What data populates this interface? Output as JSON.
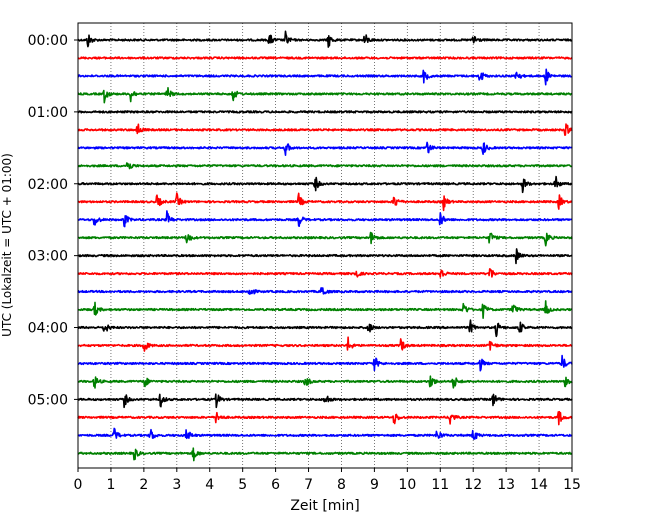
{
  "chart_data": {
    "type": "line",
    "title": "",
    "xlabel": "Zeit  [min]",
    "ylabel": "UTC (Lokalzeit = UTC + 01:00)",
    "xlim": [
      0,
      15
    ],
    "x_ticks": [
      "0",
      "1",
      "2",
      "3",
      "4",
      "5",
      "6",
      "7",
      "8",
      "9",
      "10",
      "11",
      "12",
      "13",
      "14",
      "15"
    ],
    "y_ticks": [
      "00:00",
      "01:00",
      "02:00",
      "03:00",
      "04:00",
      "05:00"
    ],
    "trace_interval_minutes": 15,
    "trace_count": 24,
    "trace_color_cycle": [
      "#000000",
      "#ff0000",
      "#0000ff",
      "#008000"
    ],
    "grid": "vertical dotted at each minute",
    "traces": [
      {
        "start": "00:00",
        "events": [
          0.3,
          5.8,
          6.3,
          7.6,
          8.7,
          12.0
        ]
      },
      {
        "start": "00:15",
        "events": []
      },
      {
        "start": "00:30",
        "events": [
          10.5,
          12.2,
          13.3,
          14.2
        ]
      },
      {
        "start": "00:45",
        "events": [
          0.8,
          1.6,
          2.7,
          4.7
        ]
      },
      {
        "start": "01:00",
        "events": []
      },
      {
        "start": "01:15",
        "events": [
          1.8,
          14.8
        ]
      },
      {
        "start": "01:30",
        "events": [
          6.3,
          10.6,
          12.3
        ]
      },
      {
        "start": "01:45",
        "events": [
          1.5
        ]
      },
      {
        "start": "02:00",
        "events": [
          7.2,
          13.5,
          14.5
        ]
      },
      {
        "start": "02:15",
        "events": [
          2.4,
          3.0,
          6.7,
          9.6,
          11.1,
          14.6
        ]
      },
      {
        "start": "02:30",
        "events": [
          0.5,
          1.4,
          2.7,
          6.7,
          11.0
        ]
      },
      {
        "start": "02:45",
        "events": [
          3.3,
          8.9,
          12.5,
          14.2
        ]
      },
      {
        "start": "03:00",
        "events": [
          13.3
        ]
      },
      {
        "start": "03:15",
        "events": [
          8.4,
          11.0,
          12.5
        ]
      },
      {
        "start": "03:30",
        "events": [
          5.2,
          7.4
        ]
      },
      {
        "start": "03:45",
        "events": [
          0.5,
          11.7,
          12.3,
          13.2,
          14.2
        ]
      },
      {
        "start": "04:00",
        "events": [
          0.8,
          8.8,
          11.9,
          12.7,
          13.4
        ]
      },
      {
        "start": "04:15",
        "events": [
          2.0,
          8.2,
          9.8,
          12.5
        ]
      },
      {
        "start": "04:30",
        "events": [
          9.0,
          12.2,
          14.7
        ]
      },
      {
        "start": "04:45",
        "events": [
          0.5,
          2.0,
          6.9,
          10.7,
          11.4,
          14.8
        ]
      },
      {
        "start": "05:00",
        "events": [
          1.4,
          2.5,
          4.2,
          7.5,
          12.6
        ]
      },
      {
        "start": "05:15",
        "events": [
          4.2,
          9.6,
          11.3,
          14.6
        ]
      },
      {
        "start": "05:30",
        "events": [
          1.1,
          2.2,
          3.3,
          10.9,
          12.0
        ]
      },
      {
        "start": "05:45",
        "events": [
          1.7,
          3.5
        ]
      }
    ]
  }
}
